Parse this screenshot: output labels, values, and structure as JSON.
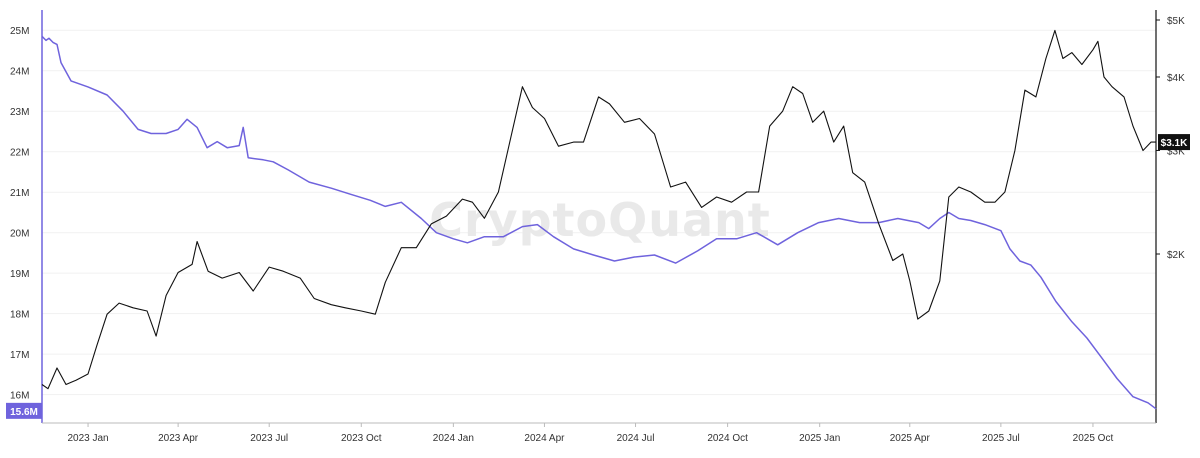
{
  "watermark": "CryptoQuant",
  "colors": {
    "price_line": "#111111",
    "supply_line": "#6f63dd",
    "left_axis": "#6f63dd",
    "right_axis": "#111111",
    "grid": "#f1f1f1"
  },
  "chart_data": {
    "type": "line",
    "title": "",
    "xlabel": "",
    "grid": true,
    "x_ticks": [
      "2023 Jan",
      "2023 Apr",
      "2023 Jul",
      "2023 Oct",
      "2024 Jan",
      "2024 Apr",
      "2024 Jul",
      "2024 Oct",
      "2025 Jan",
      "2025 Apr",
      "2025 Jul",
      "2025 Oct"
    ],
    "x_range": [
      "2022-11-16",
      "2025-12-03"
    ],
    "left_axis": {
      "ticks": [
        "16M",
        "17M",
        "18M",
        "19M",
        "20M",
        "21M",
        "22M",
        "23M",
        "24M",
        "25M"
      ],
      "ylim": [
        15300000,
        25500000
      ],
      "current_label": "15.6M",
      "current_value": 15600000
    },
    "right_axis": {
      "scale": "log",
      "ticks": [
        "$2K",
        "$3K",
        "$4K",
        "$5K"
      ],
      "tick_values": [
        2000,
        3000,
        4000,
        5000
      ],
      "current_label": "$3.1K",
      "current_value": 3100
    },
    "series": [
      {
        "axis": "left",
        "x": [
          "2022-11-16",
          "2022-11-20",
          "2022-11-23",
          "2022-11-27",
          "2022-12-01",
          "2022-12-05",
          "2022-12-15",
          "2023-01-01",
          "2023-01-20",
          "2023-02-05",
          "2023-02-20",
          "2023-03-05",
          "2023-03-20",
          "2023-04-01",
          "2023-04-10",
          "2023-04-20",
          "2023-04-30",
          "2023-05-10",
          "2023-05-20",
          "2023-06-01",
          "2023-06-05",
          "2023-06-10",
          "2023-06-25",
          "2023-07-05",
          "2023-07-20",
          "2023-08-10",
          "2023-09-01",
          "2023-09-20",
          "2023-10-10",
          "2023-10-25",
          "2023-11-10",
          "2023-11-30",
          "2023-12-15",
          "2024-01-01",
          "2024-01-15",
          "2024-02-01",
          "2024-02-20",
          "2024-03-10",
          "2024-03-25",
          "2024-04-10",
          "2024-04-30",
          "2024-05-20",
          "2024-06-10",
          "2024-06-30",
          "2024-07-20",
          "2024-08-10",
          "2024-09-01",
          "2024-09-20",
          "2024-10-10",
          "2024-10-30",
          "2024-11-20",
          "2024-12-10",
          "2024-12-31",
          "2025-01-20",
          "2025-02-10",
          "2025-03-01",
          "2025-03-20",
          "2025-04-10",
          "2025-04-20",
          "2025-05-01",
          "2025-05-10",
          "2025-05-20",
          "2025-06-01",
          "2025-06-15",
          "2025-07-01",
          "2025-07-10",
          "2025-07-20",
          "2025-07-31",
          "2025-08-10",
          "2025-08-25",
          "2025-09-10",
          "2025-09-25",
          "2025-10-10",
          "2025-10-25",
          "2025-11-10",
          "2025-11-25",
          "2025-12-03"
        ],
        "y": [
          24.85,
          24.75,
          24.8,
          24.7,
          24.65,
          24.2,
          23.75,
          23.6,
          23.4,
          23.0,
          22.55,
          22.45,
          22.45,
          22.55,
          22.8,
          22.6,
          22.1,
          22.25,
          22.1,
          22.15,
          22.6,
          21.85,
          21.8,
          21.75,
          21.55,
          21.25,
          21.1,
          20.95,
          20.8,
          20.65,
          20.75,
          20.35,
          20.0,
          19.85,
          19.75,
          19.9,
          19.9,
          20.15,
          20.2,
          19.9,
          19.6,
          19.45,
          19.3,
          19.4,
          19.45,
          19.25,
          19.55,
          19.85,
          19.85,
          20.0,
          19.7,
          20.0,
          20.25,
          20.35,
          20.25,
          20.25,
          20.35,
          20.25,
          20.1,
          20.35,
          20.5,
          20.35,
          20.3,
          20.2,
          20.05,
          19.6,
          19.3,
          19.2,
          18.9,
          18.3,
          17.8,
          17.4,
          16.9,
          16.4,
          15.95,
          15.8,
          15.65
        ],
        "y_unit": "M"
      },
      {
        "axis": "right",
        "x": [
          "2022-11-16",
          "2022-11-22",
          "2022-12-01",
          "2022-12-10",
          "2022-12-20",
          "2023-01-01",
          "2023-01-10",
          "2023-01-20",
          "2023-02-01",
          "2023-02-15",
          "2023-03-01",
          "2023-03-10",
          "2023-03-20",
          "2023-04-01",
          "2023-04-15",
          "2023-04-20",
          "2023-05-01",
          "2023-05-15",
          "2023-06-01",
          "2023-06-15",
          "2023-07-01",
          "2023-07-15",
          "2023-08-01",
          "2023-08-15",
          "2023-09-01",
          "2023-09-15",
          "2023-10-01",
          "2023-10-15",
          "2023-10-25",
          "2023-11-10",
          "2023-11-25",
          "2023-12-10",
          "2023-12-25",
          "2024-01-10",
          "2024-01-20",
          "2024-02-01",
          "2024-02-15",
          "2024-03-01",
          "2024-03-10",
          "2024-03-20",
          "2024-04-01",
          "2024-04-15",
          "2024-04-30",
          "2024-05-10",
          "2024-05-25",
          "2024-06-05",
          "2024-06-20",
          "2024-07-05",
          "2024-07-20",
          "2024-08-05",
          "2024-08-20",
          "2024-09-05",
          "2024-09-20",
          "2024-10-05",
          "2024-10-20",
          "2024-11-01",
          "2024-11-12",
          "2024-11-25",
          "2024-12-05",
          "2024-12-15",
          "2024-12-25",
          "2025-01-05",
          "2025-01-15",
          "2025-01-25",
          "2025-02-03",
          "2025-02-15",
          "2025-03-01",
          "2025-03-15",
          "2025-03-25",
          "2025-04-01",
          "2025-04-09",
          "2025-04-20",
          "2025-05-01",
          "2025-05-10",
          "2025-05-20",
          "2025-06-01",
          "2025-06-15",
          "2025-06-25",
          "2025-07-05",
          "2025-07-15",
          "2025-07-25",
          "2025-08-05",
          "2025-08-15",
          "2025-08-24",
          "2025-09-01",
          "2025-09-10",
          "2025-09-20",
          "2025-10-01",
          "2025-10-06",
          "2025-10-12",
          "2025-10-20",
          "2025-11-01",
          "2025-11-10",
          "2025-11-20",
          "2025-11-28",
          "2025-12-03"
        ],
        "y": [
          1200,
          1180,
          1280,
          1200,
          1220,
          1250,
          1400,
          1580,
          1650,
          1620,
          1600,
          1450,
          1700,
          1860,
          1920,
          2100,
          1870,
          1820,
          1860,
          1730,
          1900,
          1870,
          1820,
          1680,
          1640,
          1620,
          1600,
          1580,
          1790,
          2050,
          2050,
          2250,
          2320,
          2480,
          2450,
          2300,
          2550,
          3300,
          3850,
          3550,
          3400,
          3050,
          3100,
          3100,
          3700,
          3600,
          3350,
          3400,
          3200,
          2600,
          2650,
          2400,
          2500,
          2450,
          2550,
          2550,
          3300,
          3500,
          3850,
          3750,
          3350,
          3500,
          3100,
          3300,
          2750,
          2650,
          2250,
          1950,
          2000,
          1800,
          1550,
          1600,
          1800,
          2500,
          2600,
          2550,
          2450,
          2450,
          2550,
          3000,
          3800,
          3700,
          4300,
          4800,
          4300,
          4400,
          4200,
          4450,
          4600,
          4000,
          3850,
          3700,
          3300,
          3000,
          3100,
          3100
        ]
      }
    ]
  }
}
